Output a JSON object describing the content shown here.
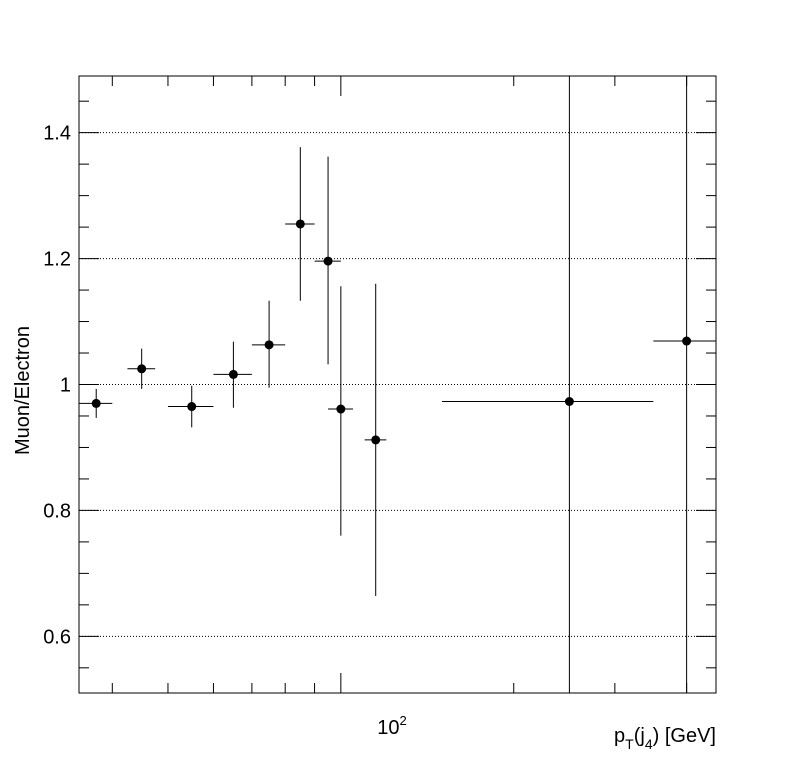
{
  "chart_data": {
    "type": "scatter",
    "title": "",
    "xlabel": "p_T(j_4) [GeV]",
    "xlabel_main": "p",
    "xlabel_sub1": "T",
    "xlabel_mid": "(j",
    "xlabel_sub2": "4",
    "xlabel_tail": ") [GeV]",
    "ylabel": "Muon/Electron",
    "xscale": "log",
    "xlim": [
      35,
      450
    ],
    "ylim": [
      0.51,
      1.49
    ],
    "y_ticks": [
      0.6,
      0.8,
      1.0,
      1.2,
      1.4
    ],
    "y_tick_labels": [
      "0.6",
      "0.8",
      "1",
      "1.2",
      "1.4"
    ],
    "x_major_tick": 100,
    "x_major_tick_label_base": "10",
    "x_major_tick_label_exp": "2",
    "x_minor_ticks": [
      40,
      50,
      60,
      70,
      80,
      90,
      200,
      300,
      400
    ],
    "grid_y": true,
    "series": [
      {
        "name": "Muon/Electron",
        "points": [
          {
            "x": 37.5,
            "xlow": 35,
            "xhigh": 40,
            "y": 0.97,
            "ylow": 0.947,
            "yhigh": 0.993
          },
          {
            "x": 45,
            "xlow": 42.5,
            "xhigh": 47.5,
            "y": 1.025,
            "ylow": 0.993,
            "yhigh": 1.057
          },
          {
            "x": 55,
            "xlow": 50,
            "xhigh": 60,
            "y": 0.965,
            "ylow": 0.932,
            "yhigh": 0.998
          },
          {
            "x": 65,
            "xlow": 60,
            "xhigh": 70,
            "y": 1.016,
            "ylow": 0.963,
            "yhigh": 1.068
          },
          {
            "x": 75,
            "xlow": 70,
            "xhigh": 80,
            "y": 1.063,
            "ylow": 0.995,
            "yhigh": 1.133
          },
          {
            "x": 85,
            "xlow": 80,
            "xhigh": 90,
            "y": 1.255,
            "ylow": 1.133,
            "yhigh": 1.377
          },
          {
            "x": 95,
            "xlow": 90,
            "xhigh": 100,
            "y": 1.196,
            "ylow": 1.032,
            "yhigh": 1.362
          },
          {
            "x": 100,
            "xlow": 95,
            "xhigh": 105,
            "y": 0.961,
            "ylow": 0.76,
            "yhigh": 1.156
          },
          {
            "x": 115,
            "xlow": 110,
            "xhigh": 120,
            "y": 0.912,
            "ylow": 0.664,
            "yhigh": 1.16
          },
          {
            "x": 250,
            "xlow": 150,
            "xhigh": 350,
            "y": 0.973,
            "ylow": 0.51,
            "yhigh": 1.49
          },
          {
            "x": 400,
            "xlow": 350,
            "xhigh": 450,
            "y": 1.069,
            "ylow": 0.51,
            "yhigh": 1.49
          }
        ]
      }
    ]
  }
}
